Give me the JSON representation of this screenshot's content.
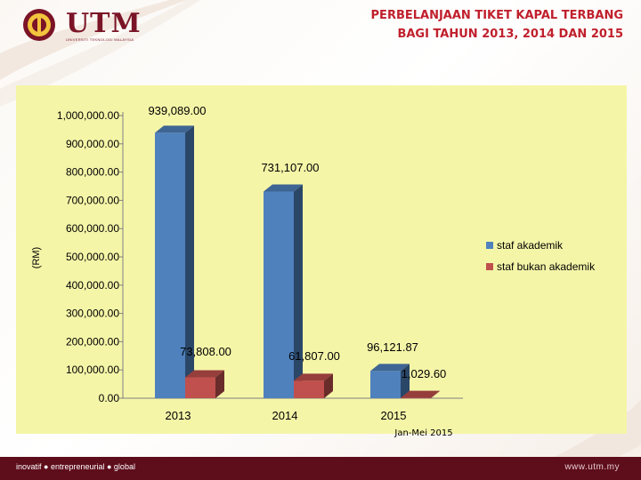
{
  "header": {
    "logo_text": "UTM",
    "logo_subtitle": "UNIVERSITI TEKNOLOGI MALAYSIA",
    "title_line1": "PERBELANJAAN TIKET KAPAL TERBANG",
    "title_line2": "BAGI TAHUN 2013, 2014 DAN 2015"
  },
  "footer": {
    "tagline": "inovatif ● entrepreneurial ● global",
    "url": "www.utm.my"
  },
  "colors": {
    "akademik": "#4f81bd",
    "bukan_akademik": "#c0504d",
    "plot_background": "#f5f5a8",
    "title": "#c0202c",
    "brand": "#7a1426"
  },
  "icons": [
    "utm-crest-icon"
  ],
  "chart_data": {
    "type": "bar",
    "style": "3d-clustered-column",
    "categories": [
      "2013",
      "2014",
      "2015"
    ],
    "category_note": "Jan-Mei 2015",
    "ylabel": "(RM)",
    "ylim": [
      0,
      1000000
    ],
    "yticks": [
      "0.00",
      "100,000.00",
      "200,000.00",
      "300,000.00",
      "400,000.00",
      "500,000.00",
      "600,000.00",
      "700,000.00",
      "800,000.00",
      "900,000.00",
      "1,000,000.00"
    ],
    "grid": false,
    "legend_position": "right",
    "series": [
      {
        "name": "staf akademik",
        "values": [
          939089.0,
          731107.0,
          96121.87
        ],
        "labels": [
          "939,089.00",
          "731,107.00",
          "96,121.87"
        ]
      },
      {
        "name": "staf bukan akademik",
        "values": [
          73808.0,
          61807.0,
          1029.6
        ],
        "labels": [
          "73,808.00",
          "61,807.00",
          "1,029.60"
        ]
      }
    ]
  }
}
